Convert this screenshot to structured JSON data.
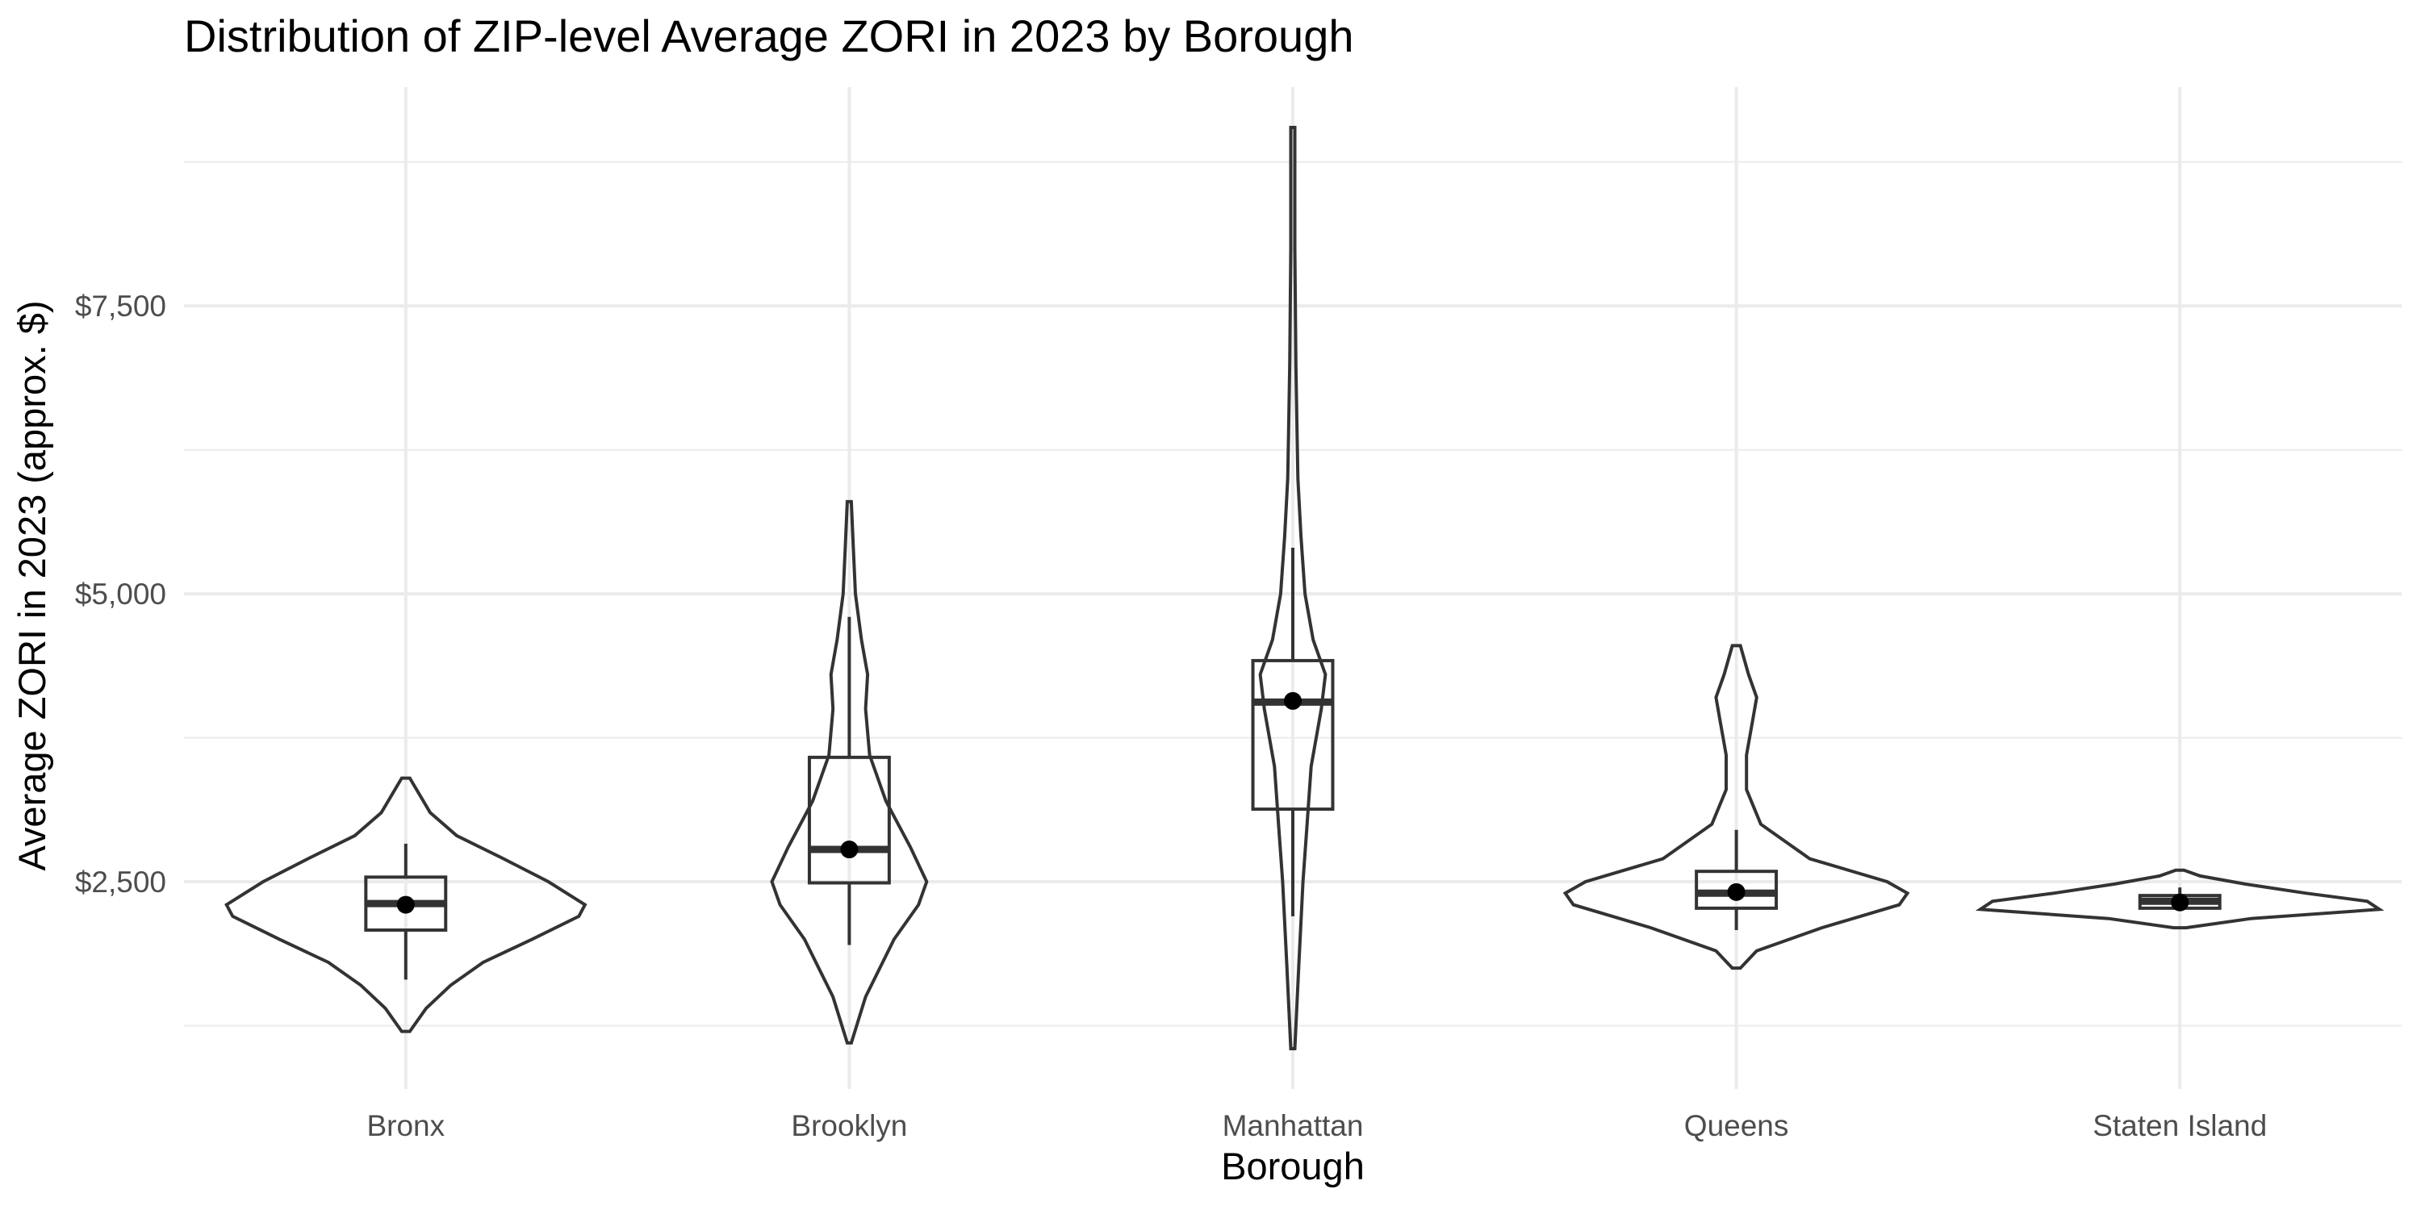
{
  "chart_data": {
    "type": "violin",
    "title": "Distribution of ZIP-level Average ZORI in 2023 by Borough",
    "xlabel": "Borough",
    "ylabel": "Average ZORI in 2023 (approx. $)",
    "ylim": [
      700,
      9400
    ],
    "y_ticks": [
      2500,
      5000,
      7500
    ],
    "y_tick_labels": [
      "$2,500",
      "$5,000",
      "$7,500"
    ],
    "y_minor_ticks": [
      1250,
      3750,
      6250,
      8750
    ],
    "grid": true,
    "legend": "none",
    "categories": [
      "Bronx",
      "Brooklyn",
      "Manhattan",
      "Queens",
      "Staten Island"
    ],
    "groups": [
      {
        "name": "Bronx",
        "violin_range": [
          1200,
          3400
        ],
        "box": {
          "whisker_low": 1650,
          "q1": 2080,
          "median": 2310,
          "q3": 2540,
          "whisker_high": 2830
        },
        "mean": 2300,
        "density_profile": [
          [
            1200,
            0.02
          ],
          [
            1400,
            0.1
          ],
          [
            1600,
            0.22
          ],
          [
            1800,
            0.38
          ],
          [
            2000,
            0.62
          ],
          [
            2200,
            0.85
          ],
          [
            2300,
            0.88
          ],
          [
            2500,
            0.7
          ],
          [
            2700,
            0.48
          ],
          [
            2900,
            0.25
          ],
          [
            3100,
            0.12
          ],
          [
            3400,
            0.02
          ]
        ]
      },
      {
        "name": "Brooklyn",
        "violin_range": [
          1100,
          5800
        ],
        "box": {
          "whisker_low": 1950,
          "q1": 2490,
          "median": 2780,
          "q3": 3580,
          "whisker_high": 4800
        },
        "mean": 2780,
        "density_profile": [
          [
            1100,
            0.01
          ],
          [
            1500,
            0.08
          ],
          [
            2000,
            0.22
          ],
          [
            2300,
            0.34
          ],
          [
            2500,
            0.38
          ],
          [
            2800,
            0.3
          ],
          [
            3200,
            0.18
          ],
          [
            3600,
            0.1
          ],
          [
            4000,
            0.08
          ],
          [
            4300,
            0.09
          ],
          [
            4600,
            0.06
          ],
          [
            5000,
            0.03
          ],
          [
            5400,
            0.02
          ],
          [
            5800,
            0.01
          ]
        ]
      },
      {
        "name": "Manhattan",
        "violin_range": [
          1050,
          9050
        ],
        "box": {
          "whisker_low": 2200,
          "q1": 3130,
          "median": 4060,
          "q3": 4420,
          "whisker_high": 5400
        },
        "mean": 4070,
        "density_profile": [
          [
            1050,
            0.01
          ],
          [
            1800,
            0.03
          ],
          [
            2500,
            0.05
          ],
          [
            3000,
            0.07
          ],
          [
            3500,
            0.09
          ],
          [
            4000,
            0.14
          ],
          [
            4300,
            0.16
          ],
          [
            4600,
            0.1
          ],
          [
            5000,
            0.06
          ],
          [
            5500,
            0.04
          ],
          [
            6000,
            0.025
          ],
          [
            6500,
            0.02
          ],
          [
            7000,
            0.015
          ],
          [
            8000,
            0.01
          ],
          [
            9050,
            0.01
          ]
        ]
      },
      {
        "name": "Queens",
        "violin_range": [
          1750,
          4550
        ],
        "box": {
          "whisker_low": 2080,
          "q1": 2270,
          "median": 2400,
          "q3": 2590,
          "whisker_high": 2950
        },
        "mean": 2410,
        "density_profile": [
          [
            1750,
            0.02
          ],
          [
            1900,
            0.1
          ],
          [
            2100,
            0.42
          ],
          [
            2300,
            0.8
          ],
          [
            2400,
            0.84
          ],
          [
            2500,
            0.74
          ],
          [
            2700,
            0.36
          ],
          [
            3000,
            0.12
          ],
          [
            3300,
            0.05
          ],
          [
            3600,
            0.05
          ],
          [
            3900,
            0.08
          ],
          [
            4100,
            0.1
          ],
          [
            4300,
            0.06
          ],
          [
            4550,
            0.02
          ]
        ]
      },
      {
        "name": "Staten Island",
        "violin_range": [
          2100,
          2600
        ],
        "box": {
          "whisker_low": 2250,
          "q1": 2270,
          "median": 2330,
          "q3": 2380,
          "whisker_high": 2450
        },
        "mean": 2320,
        "density_profile": [
          [
            2100,
            0.03
          ],
          [
            2180,
            0.35
          ],
          [
            2260,
            0.98
          ],
          [
            2330,
            0.92
          ],
          [
            2400,
            0.62
          ],
          [
            2480,
            0.32
          ],
          [
            2550,
            0.1
          ],
          [
            2600,
            0.02
          ]
        ]
      }
    ]
  }
}
